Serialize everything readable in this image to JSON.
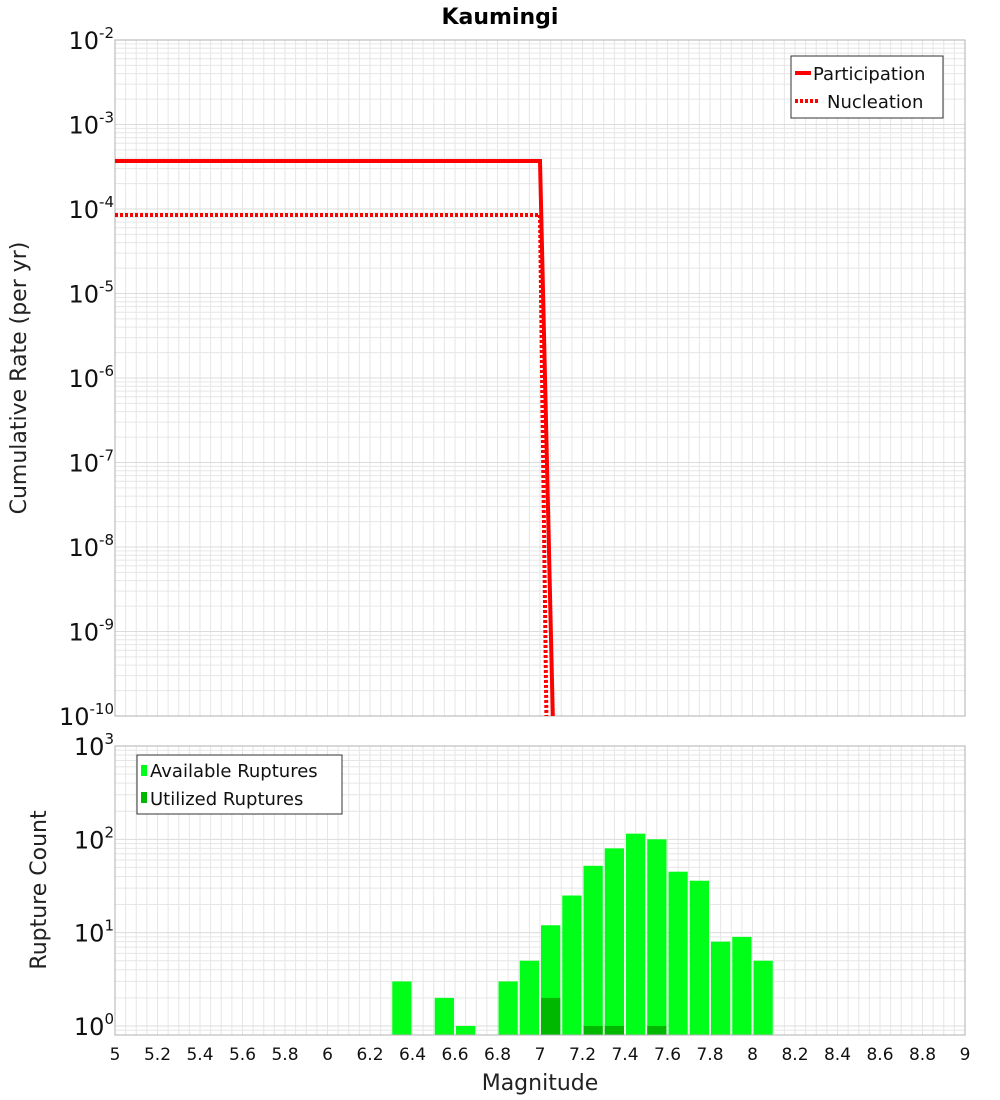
{
  "title": "Kaumingi",
  "xlabel": "Magnitude",
  "colors": {
    "participation": "#ff0000",
    "nucleation": "#ff0000",
    "available": "#00ff18",
    "utilized": "#00b800",
    "grid": "#e6e6e6",
    "frame": "#b0b0b0"
  },
  "chart_data": [
    {
      "type": "line",
      "ylabel": "Cumulative Rate (per yr)",
      "yscale": "log",
      "xlim": [
        5,
        9
      ],
      "ylim": [
        1e-10,
        0.01
      ],
      "y_tick_mantissa": "10",
      "y_tick_exponents": [
        "-2",
        "-3",
        "-4",
        "-5",
        "-6",
        "-7",
        "-8",
        "-9",
        "-10"
      ],
      "legend": {
        "position": "top-right",
        "entries": [
          "Participation",
          "Nucleation"
        ]
      },
      "series": [
        {
          "name": "Participation",
          "style": "solid",
          "x": [
            5.0,
            7.0,
            7.06
          ],
          "y": [
            0.00037,
            0.00037,
            1e-10
          ]
        },
        {
          "name": "Nucleation",
          "style": "dotted",
          "x": [
            5.0,
            7.0,
            7.03
          ],
          "y": [
            8.5e-05,
            8.5e-05,
            1e-10
          ]
        }
      ]
    },
    {
      "type": "bar",
      "ylabel": "Rupture Count",
      "yscale": "log",
      "xlim": [
        5,
        9
      ],
      "ylim": [
        0.8,
        1000
      ],
      "bin_width": 0.1,
      "y_tick_mantissa": "10",
      "y_tick_exponents": [
        "3",
        "2",
        "1",
        "0"
      ],
      "legend": {
        "position": "top-left",
        "entries": [
          "Available Ruptures",
          "Utilized Ruptures"
        ]
      },
      "x_ticks": [
        "5",
        "5.2",
        "5.4",
        "5.6",
        "5.8",
        "6",
        "6.2",
        "6.4",
        "6.6",
        "6.8",
        "7",
        "7.2",
        "7.4",
        "7.6",
        "7.8",
        "8",
        "8.2",
        "8.4",
        "8.6",
        "8.8",
        "9"
      ],
      "series": [
        {
          "name": "Available Ruptures",
          "x": [
            6.35,
            6.55,
            6.65,
            6.85,
            6.95,
            7.05,
            7.15,
            7.25,
            7.35,
            7.45,
            7.55,
            7.65,
            7.75,
            7.85,
            7.95,
            8.05
          ],
          "values": [
            3,
            2,
            1,
            3,
            5,
            12,
            25,
            52,
            80,
            115,
            100,
            45,
            36,
            8,
            9,
            5
          ]
        },
        {
          "name": "Utilized Ruptures",
          "x": [
            7.05,
            7.25,
            7.35,
            7.55
          ],
          "values": [
            2,
            1,
            1,
            1
          ]
        }
      ]
    }
  ]
}
